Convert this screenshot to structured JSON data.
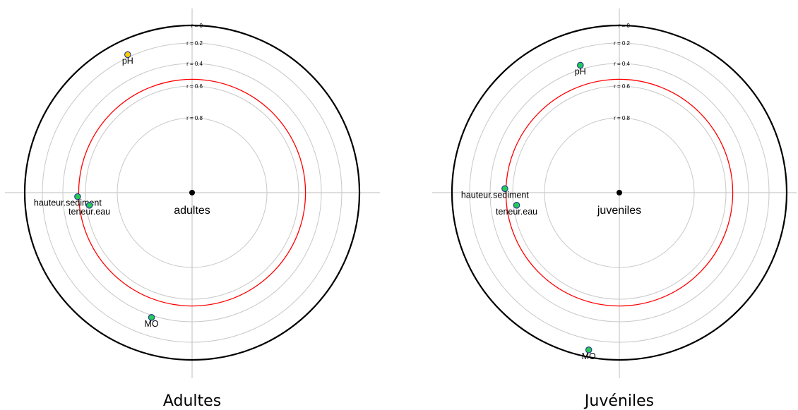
{
  "chart_data": [
    {
      "type": "scatter",
      "projection": "polar correlation circle",
      "title": "Adultes",
      "center_label": "adultes",
      "radial_axis": {
        "label_prefix": "r = ",
        "ticks": [
          0,
          0.2,
          0.4,
          0.6,
          0.8
        ],
        "range": [
          0,
          1
        ]
      },
      "threshold_circle": {
        "r": 0.54,
        "color": "#ff0000"
      },
      "grid": true,
      "points": [
        {
          "label": "pH",
          "r": 0.17,
          "angle_deg": 115,
          "color": "#ffcc00"
        },
        {
          "label": "hauteur.sediment",
          "r": 0.53,
          "angle_deg": 182,
          "color": "#22cc55"
        },
        {
          "label": "teneur.eau",
          "r": 0.62,
          "angle_deg": 187,
          "color": "#22cc55"
        },
        {
          "label": "MO",
          "r": 0.38,
          "angle_deg": 252,
          "color": "#22cc55"
        }
      ]
    },
    {
      "type": "scatter",
      "projection": "polar correlation circle",
      "title": "Juvéniles",
      "center_label": "juveniles",
      "radial_axis": {
        "label_prefix": "r = ",
        "ticks": [
          0,
          0.2,
          0.4,
          0.6,
          0.8
        ],
        "range": [
          0,
          1
        ]
      },
      "threshold_circle": {
        "r": 0.54,
        "color": "#ff0000"
      },
      "grid": true,
      "points": [
        {
          "label": "pH",
          "r": 0.36,
          "angle_deg": 107,
          "color": "#22cc55"
        },
        {
          "label": "hauteur.sediment",
          "r": 0.53,
          "angle_deg": 178,
          "color": "#22cc55"
        },
        {
          "label": "teneur.eau",
          "r": 0.62,
          "angle_deg": 187,
          "color": "#22cc55"
        },
        {
          "label": "MO",
          "r": 0.08,
          "angle_deg": 259,
          "color": "#22cc55"
        }
      ]
    }
  ]
}
